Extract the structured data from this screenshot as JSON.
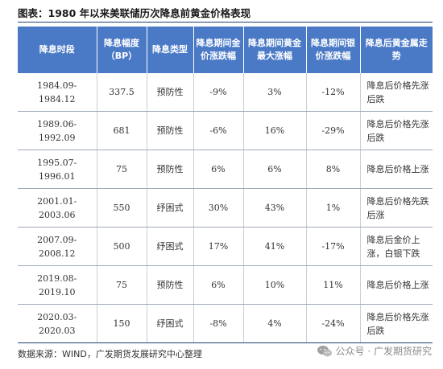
{
  "title": "图表：1980 年以来美联储历次降息前黄金价格表现",
  "table": {
    "headers": [
      "降息时段",
      "降息幅度（BP）",
      "降息类型",
      "降息期间金价涨跌幅",
      "降息期间黄金最大涨幅",
      "降息期间银价涨跌幅",
      "降息后黄金属走势"
    ],
    "rows": [
      {
        "period": "1984.09-1984.12",
        "cut_bp": "337.5",
        "type": "预防性",
        "gold_change": "-9%",
        "gold_max": "3%",
        "silver_change": "-12%",
        "trend": "降息后价格先涨后跌",
        "trend_color": "#3cae4f"
      },
      {
        "period": "1989.06-1992.09",
        "cut_bp": "681",
        "type": "预防性",
        "gold_change": "-6%",
        "gold_max": "16%",
        "silver_change": "-29%",
        "trend": "降息后价格先涨后跌",
        "trend_color": "#3cae4f"
      },
      {
        "period": "1995.07-1996.01",
        "cut_bp": "75",
        "type": "预防性",
        "gold_change": "6%",
        "gold_max": "6%",
        "silver_change": "8%",
        "trend": "降息后价格上涨",
        "trend_color": "#e2453a"
      },
      {
        "period": "2001.01-2003.06",
        "cut_bp": "550",
        "type": "纾困式",
        "gold_change": "30%",
        "gold_max": "43%",
        "silver_change": "1%",
        "trend": "降息后价格先跌后涨",
        "trend_color": "#333333"
      },
      {
        "period": "2007.09-2008.12",
        "cut_bp": "500",
        "type": "纾困式",
        "gold_change": "17%",
        "gold_max": "41%",
        "silver_change": "-17%",
        "trend": "降息后金价上涨，白银下跌",
        "trend_color": "#e2453a"
      },
      {
        "period": "2019.08-2019.10",
        "cut_bp": "75",
        "type": "预防性",
        "gold_change": "6%",
        "gold_max": "10%",
        "silver_change": "11%",
        "trend": "降息后价格上涨",
        "trend_color": "#e2453a"
      },
      {
        "period": "2020.03-2020.03",
        "cut_bp": "150",
        "type": "纾困式",
        "gold_change": "-8%",
        "gold_max": "4%",
        "silver_change": "-24%",
        "trend": "降息后价格先涨后跌",
        "trend_color": "#3cae4f"
      }
    ]
  },
  "source": "数据来源：WIND，广发期货发展研究中心整理",
  "watermark": {
    "icon": "wechat-icon",
    "text": "公众号 · 广发期货研究"
  }
}
